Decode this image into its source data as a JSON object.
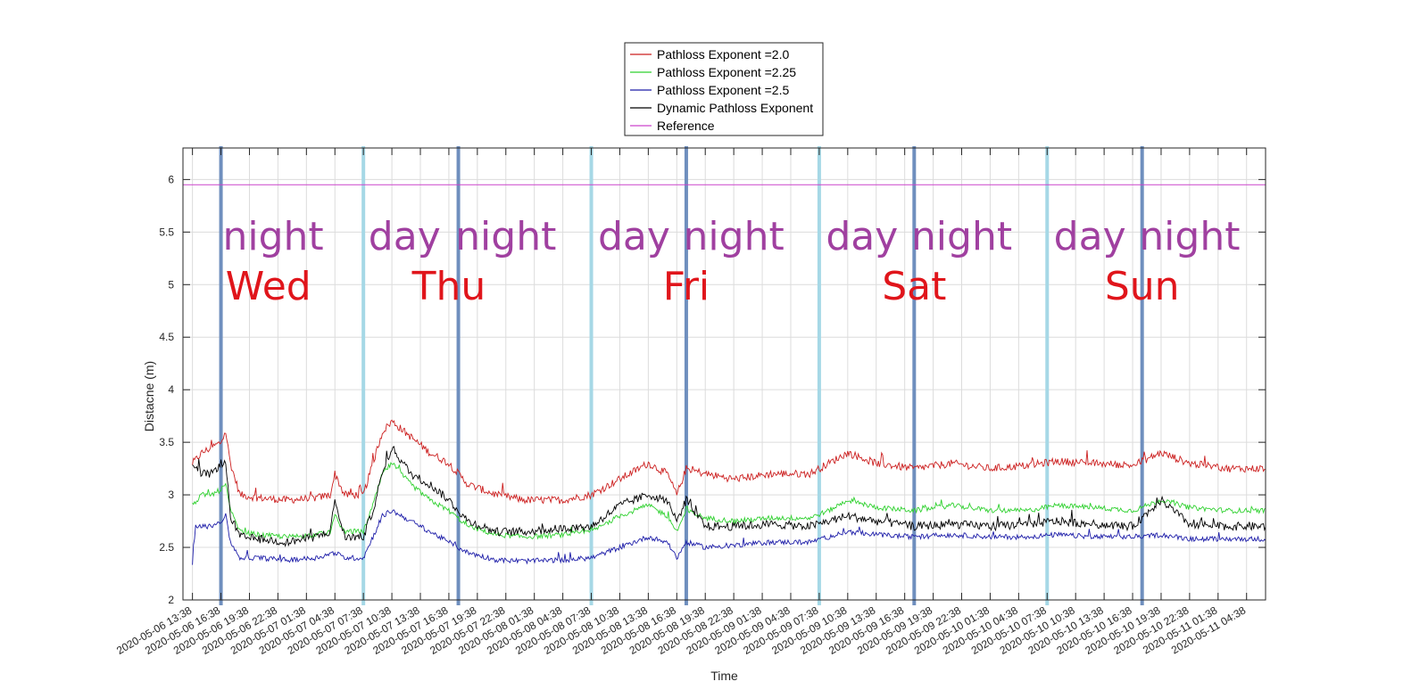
{
  "chart_data": {
    "type": "line",
    "xlabel": "Time",
    "ylabel": "Distacne (m)",
    "ylim": [
      2,
      6.3
    ],
    "yticks": [
      "2",
      "2.5",
      "3",
      "3.5",
      "4",
      "4.5",
      "5",
      "5.5",
      "6"
    ],
    "xlim": [
      "2020-05-06 12:38",
      "2020-05-11 06:38"
    ],
    "xticks": [
      "2020-05-06 13:38",
      "2020-05-06 16:38",
      "2020-05-06 19:38",
      "2020-05-06 22:38",
      "2020-05-07 01:38",
      "2020-05-07 04:38",
      "2020-05-07 07:38",
      "2020-05-07 10:38",
      "2020-05-07 13:38",
      "2020-05-07 16:38",
      "2020-05-07 19:38",
      "2020-05-07 22:38",
      "2020-05-08 01:38",
      "2020-05-08 04:38",
      "2020-05-08 07:38",
      "2020-05-08 10:38",
      "2020-05-08 13:38",
      "2020-05-08 16:38",
      "2020-05-08 19:38",
      "2020-05-08 22:38",
      "2020-05-09 01:38",
      "2020-05-09 04:38",
      "2020-05-09 07:38",
      "2020-05-09 10:38",
      "2020-05-09 13:38",
      "2020-05-09 16:38",
      "2020-05-09 19:38",
      "2020-05-09 22:38",
      "2020-05-10 01:38",
      "2020-05-10 04:38",
      "2020-05-10 07:38",
      "2020-05-10 10:38",
      "2020-05-10 13:38",
      "2020-05-10 16:38",
      "2020-05-10 19:38",
      "2020-05-10 22:38",
      "2020-05-11 01:38",
      "2020-05-11 04:38"
    ],
    "grid": true,
    "legend_position": "top-center",
    "series": [
      {
        "name": "Pathloss Exponent =2.0",
        "color": "#cc1f1f",
        "points": [
          [
            "2020-05-06 13:38",
            3.3
          ],
          [
            "2020-05-06 14:38",
            3.4
          ],
          [
            "2020-05-06 15:38",
            3.45
          ],
          [
            "2020-05-06 16:38",
            3.5
          ],
          [
            "2020-05-06 17:08",
            3.6
          ],
          [
            "2020-05-06 17:38",
            3.3
          ],
          [
            "2020-05-06 18:38",
            3.0
          ],
          [
            "2020-05-06 20:38",
            2.97
          ],
          [
            "2020-05-06 23:38",
            2.95
          ],
          [
            "2020-05-07 02:38",
            2.97
          ],
          [
            "2020-05-07 04:08",
            3.0
          ],
          [
            "2020-05-07 04:38",
            3.2
          ],
          [
            "2020-05-07 05:38",
            3.0
          ],
          [
            "2020-05-07 07:38",
            3.0
          ],
          [
            "2020-05-07 08:38",
            3.3
          ],
          [
            "2020-05-07 09:38",
            3.6
          ],
          [
            "2020-05-07 10:38",
            3.7
          ],
          [
            "2020-05-07 12:38",
            3.55
          ],
          [
            "2020-05-07 14:38",
            3.4
          ],
          [
            "2020-05-07 16:38",
            3.3
          ],
          [
            "2020-05-07 18:38",
            3.1
          ],
          [
            "2020-05-07 21:38",
            3.0
          ],
          [
            "2020-05-08 00:38",
            2.95
          ],
          [
            "2020-05-08 04:38",
            2.95
          ],
          [
            "2020-05-08 07:38",
            3.0
          ],
          [
            "2020-05-08 10:38",
            3.15
          ],
          [
            "2020-05-08 13:38",
            3.3
          ],
          [
            "2020-05-08 15:38",
            3.2
          ],
          [
            "2020-05-08 16:38",
            3.0
          ],
          [
            "2020-05-08 17:38",
            3.25
          ],
          [
            "2020-05-08 19:38",
            3.2
          ],
          [
            "2020-05-08 22:38",
            3.15
          ],
          [
            "2020-05-09 02:38",
            3.2
          ],
          [
            "2020-05-09 06:38",
            3.2
          ],
          [
            "2020-05-09 08:38",
            3.3
          ],
          [
            "2020-05-09 10:38",
            3.4
          ],
          [
            "2020-05-09 13:38",
            3.3
          ],
          [
            "2020-05-09 17:38",
            3.25
          ],
          [
            "2020-05-09 21:38",
            3.3
          ],
          [
            "2020-05-10 01:38",
            3.25
          ],
          [
            "2020-05-10 05:38",
            3.28
          ],
          [
            "2020-05-10 08:38",
            3.32
          ],
          [
            "2020-05-10 12:38",
            3.3
          ],
          [
            "2020-05-10 16:38",
            3.28
          ],
          [
            "2020-05-10 19:38",
            3.4
          ],
          [
            "2020-05-10 22:38",
            3.3
          ],
          [
            "2020-05-11 02:38",
            3.25
          ],
          [
            "2020-05-11 06:38",
            3.25
          ]
        ]
      },
      {
        "name": "Pathloss Exponent =2.25",
        "color": "#2fd12f",
        "points": [
          [
            "2020-05-06 13:38",
            2.9
          ],
          [
            "2020-05-06 14:38",
            3.0
          ],
          [
            "2020-05-06 15:38",
            3.0
          ],
          [
            "2020-05-06 16:38",
            3.05
          ],
          [
            "2020-05-06 17:08",
            3.1
          ],
          [
            "2020-05-06 17:38",
            2.85
          ],
          [
            "2020-05-06 18:38",
            2.65
          ],
          [
            "2020-05-06 20:38",
            2.62
          ],
          [
            "2020-05-06 23:38",
            2.6
          ],
          [
            "2020-05-07 02:38",
            2.62
          ],
          [
            "2020-05-07 04:08",
            2.65
          ],
          [
            "2020-05-07 04:38",
            2.8
          ],
          [
            "2020-05-07 05:38",
            2.65
          ],
          [
            "2020-05-07 07:38",
            2.65
          ],
          [
            "2020-05-07 08:38",
            2.9
          ],
          [
            "2020-05-07 09:38",
            3.2
          ],
          [
            "2020-05-07 10:38",
            3.3
          ],
          [
            "2020-05-07 12:38",
            3.1
          ],
          [
            "2020-05-07 14:38",
            2.95
          ],
          [
            "2020-05-07 16:38",
            2.85
          ],
          [
            "2020-05-07 18:38",
            2.7
          ],
          [
            "2020-05-07 21:38",
            2.62
          ],
          [
            "2020-05-08 00:38",
            2.6
          ],
          [
            "2020-05-08 04:38",
            2.62
          ],
          [
            "2020-05-08 07:38",
            2.65
          ],
          [
            "2020-05-08 10:38",
            2.8
          ],
          [
            "2020-05-08 13:38",
            2.9
          ],
          [
            "2020-05-08 15:38",
            2.8
          ],
          [
            "2020-05-08 16:38",
            2.65
          ],
          [
            "2020-05-08 17:38",
            2.85
          ],
          [
            "2020-05-08 19:38",
            2.78
          ],
          [
            "2020-05-08 22:38",
            2.75
          ],
          [
            "2020-05-09 02:38",
            2.78
          ],
          [
            "2020-05-09 06:38",
            2.78
          ],
          [
            "2020-05-09 08:38",
            2.85
          ],
          [
            "2020-05-09 10:38",
            2.95
          ],
          [
            "2020-05-09 13:38",
            2.88
          ],
          [
            "2020-05-09 17:38",
            2.85
          ],
          [
            "2020-05-09 21:38",
            2.9
          ],
          [
            "2020-05-10 01:38",
            2.85
          ],
          [
            "2020-05-10 05:38",
            2.85
          ],
          [
            "2020-05-10 08:38",
            2.9
          ],
          [
            "2020-05-10 12:38",
            2.88
          ],
          [
            "2020-05-10 16:38",
            2.85
          ],
          [
            "2020-05-10 19:38",
            2.95
          ],
          [
            "2020-05-10 22:38",
            2.88
          ],
          [
            "2020-05-11 02:38",
            2.85
          ],
          [
            "2020-05-11 06:38",
            2.85
          ]
        ]
      },
      {
        "name": "Pathloss Exponent =2.5",
        "color": "#1c1ca8",
        "points": [
          [
            "2020-05-06 13:38",
            2.35
          ],
          [
            "2020-05-06 13:58",
            2.7
          ],
          [
            "2020-05-06 14:38",
            2.7
          ],
          [
            "2020-05-06 15:38",
            2.7
          ],
          [
            "2020-05-06 16:38",
            2.75
          ],
          [
            "2020-05-06 17:08",
            2.8
          ],
          [
            "2020-05-06 17:38",
            2.55
          ],
          [
            "2020-05-06 18:38",
            2.4
          ],
          [
            "2020-05-06 20:38",
            2.4
          ],
          [
            "2020-05-06 23:38",
            2.38
          ],
          [
            "2020-05-07 02:38",
            2.4
          ],
          [
            "2020-05-07 04:38",
            2.45
          ],
          [
            "2020-05-07 05:38",
            2.4
          ],
          [
            "2020-05-07 07:38",
            2.4
          ],
          [
            "2020-05-07 08:38",
            2.6
          ],
          [
            "2020-05-07 09:38",
            2.8
          ],
          [
            "2020-05-07 10:38",
            2.85
          ],
          [
            "2020-05-07 12:38",
            2.75
          ],
          [
            "2020-05-07 14:38",
            2.65
          ],
          [
            "2020-05-07 16:38",
            2.55
          ],
          [
            "2020-05-07 18:38",
            2.45
          ],
          [
            "2020-05-07 21:38",
            2.38
          ],
          [
            "2020-05-08 00:38",
            2.37
          ],
          [
            "2020-05-08 04:38",
            2.38
          ],
          [
            "2020-05-08 07:38",
            2.4
          ],
          [
            "2020-05-08 10:38",
            2.5
          ],
          [
            "2020-05-08 13:38",
            2.6
          ],
          [
            "2020-05-08 15:38",
            2.55
          ],
          [
            "2020-05-08 16:38",
            2.4
          ],
          [
            "2020-05-08 17:38",
            2.55
          ],
          [
            "2020-05-08 19:38",
            2.5
          ],
          [
            "2020-05-08 22:38",
            2.52
          ],
          [
            "2020-05-09 02:38",
            2.55
          ],
          [
            "2020-05-09 06:38",
            2.55
          ],
          [
            "2020-05-09 08:38",
            2.6
          ],
          [
            "2020-05-09 10:38",
            2.65
          ],
          [
            "2020-05-09 13:38",
            2.62
          ],
          [
            "2020-05-09 17:38",
            2.6
          ],
          [
            "2020-05-09 21:38",
            2.62
          ],
          [
            "2020-05-10 01:38",
            2.6
          ],
          [
            "2020-05-10 05:38",
            2.6
          ],
          [
            "2020-05-10 08:38",
            2.62
          ],
          [
            "2020-05-10 12:38",
            2.6
          ],
          [
            "2020-05-10 16:38",
            2.6
          ],
          [
            "2020-05-10 19:38",
            2.62
          ],
          [
            "2020-05-10 22:38",
            2.58
          ],
          [
            "2020-05-11 02:38",
            2.58
          ],
          [
            "2020-05-11 06:38",
            2.58
          ]
        ]
      },
      {
        "name": "Dynamic Pathloss Exponent",
        "color": "#000000",
        "points": [
          [
            "2020-05-06 13:38",
            3.3
          ],
          [
            "2020-05-06 14:38",
            3.2
          ],
          [
            "2020-05-06 15:38",
            3.2
          ],
          [
            "2020-05-06 16:38",
            3.3
          ],
          [
            "2020-05-06 17:08",
            3.3
          ],
          [
            "2020-05-06 17:38",
            2.8
          ],
          [
            "2020-05-06 18:38",
            2.6
          ],
          [
            "2020-05-06 20:38",
            2.58
          ],
          [
            "2020-05-06 23:38",
            2.55
          ],
          [
            "2020-05-07 02:38",
            2.6
          ],
          [
            "2020-05-07 04:08",
            2.65
          ],
          [
            "2020-05-07 04:38",
            2.95
          ],
          [
            "2020-05-07 05:38",
            2.6
          ],
          [
            "2020-05-07 07:38",
            2.6
          ],
          [
            "2020-05-07 08:38",
            2.85
          ],
          [
            "2020-05-07 09:38",
            3.2
          ],
          [
            "2020-05-07 10:38",
            3.45
          ],
          [
            "2020-05-07 12:38",
            3.2
          ],
          [
            "2020-05-07 14:38",
            3.1
          ],
          [
            "2020-05-07 16:38",
            2.95
          ],
          [
            "2020-05-07 18:38",
            2.75
          ],
          [
            "2020-05-07 21:38",
            2.65
          ],
          [
            "2020-05-08 00:38",
            2.65
          ],
          [
            "2020-05-08 04:38",
            2.68
          ],
          [
            "2020-05-08 07:38",
            2.7
          ],
          [
            "2020-05-08 10:38",
            2.9
          ],
          [
            "2020-05-08 13:38",
            3.0
          ],
          [
            "2020-05-08 15:38",
            2.95
          ],
          [
            "2020-05-08 16:38",
            2.75
          ],
          [
            "2020-05-08 17:38",
            2.95
          ],
          [
            "2020-05-08 19:38",
            2.7
          ],
          [
            "2020-05-08 22:38",
            2.7
          ],
          [
            "2020-05-09 02:38",
            2.72
          ],
          [
            "2020-05-09 06:38",
            2.7
          ],
          [
            "2020-05-09 08:38",
            2.75
          ],
          [
            "2020-05-09 10:38",
            2.8
          ],
          [
            "2020-05-09 13:38",
            2.75
          ],
          [
            "2020-05-09 17:38",
            2.7
          ],
          [
            "2020-05-09 21:38",
            2.72
          ],
          [
            "2020-05-10 01:38",
            2.7
          ],
          [
            "2020-05-10 05:38",
            2.72
          ],
          [
            "2020-05-10 08:38",
            2.75
          ],
          [
            "2020-05-10 12:38",
            2.72
          ],
          [
            "2020-05-10 16:38",
            2.7
          ],
          [
            "2020-05-10 19:38",
            2.95
          ],
          [
            "2020-05-10 22:38",
            2.72
          ],
          [
            "2020-05-11 02:38",
            2.7
          ],
          [
            "2020-05-11 06:38",
            2.7
          ]
        ]
      },
      {
        "name": "Reference",
        "color": "#cc44cc",
        "points": [
          [
            "2020-05-06 12:38",
            5.95
          ],
          [
            "2020-05-11 06:38",
            5.95
          ]
        ]
      }
    ],
    "annotations": {
      "night_color": "#a040a0",
      "dayname_color": "#e0151b",
      "phase_labels": [
        {
          "text": "night",
          "x": "2020-05-06 22:08"
        },
        {
          "text": "day",
          "x": "2020-05-07 11:58"
        },
        {
          "text": "night",
          "x": "2020-05-07 22:38"
        },
        {
          "text": "day",
          "x": "2020-05-08 12:08"
        },
        {
          "text": "night",
          "x": "2020-05-08 22:38"
        },
        {
          "text": "day",
          "x": "2020-05-09 12:08"
        },
        {
          "text": "night",
          "x": "2020-05-09 22:38"
        },
        {
          "text": "day",
          "x": "2020-05-10 12:08"
        },
        {
          "text": "night",
          "x": "2020-05-10 22:38"
        }
      ],
      "weekday_labels": [
        {
          "text": "Wed",
          "x": "2020-05-06 21:38"
        },
        {
          "text": "Thu",
          "x": "2020-05-07 16:38"
        },
        {
          "text": "Fri",
          "x": "2020-05-08 17:38"
        },
        {
          "text": "Sat",
          "x": "2020-05-09 17:38"
        },
        {
          "text": "Sun",
          "x": "2020-05-10 17:38"
        }
      ],
      "boundaries": [
        {
          "kind": "dusk",
          "x": "2020-05-06 16:38",
          "color": "#6f8fbe"
        },
        {
          "kind": "dawn",
          "x": "2020-05-07 07:38",
          "color": "#a6d8e6"
        },
        {
          "kind": "dusk",
          "x": "2020-05-07 17:38",
          "color": "#6f8fbe"
        },
        {
          "kind": "dawn",
          "x": "2020-05-08 07:38",
          "color": "#a6d8e6"
        },
        {
          "kind": "dusk",
          "x": "2020-05-08 17:38",
          "color": "#6f8fbe"
        },
        {
          "kind": "dawn",
          "x": "2020-05-09 07:38",
          "color": "#a6d8e6"
        },
        {
          "kind": "dusk",
          "x": "2020-05-09 17:38",
          "color": "#6f8fbe"
        },
        {
          "kind": "dawn",
          "x": "2020-05-10 07:38",
          "color": "#a6d8e6"
        },
        {
          "kind": "dusk",
          "x": "2020-05-10 17:38",
          "color": "#6f8fbe"
        }
      ]
    }
  }
}
